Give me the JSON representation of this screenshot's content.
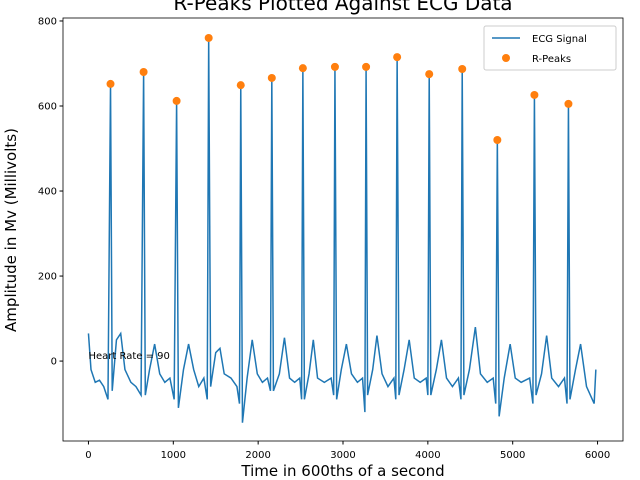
{
  "chart_data": {
    "type": "line",
    "title": "R-Peaks Plotted Against ECG Data",
    "xlabel": "Time in 600ths of a second",
    "ylabel": "Amplitude in Mv (Millivolts)",
    "annotation": {
      "text": "Heart Rate = 90",
      "x": 0,
      "y": 0
    },
    "xlim": [
      -300,
      6300
    ],
    "ylim": [
      -188,
      807
    ],
    "xticks": [
      0,
      1000,
      2000,
      3000,
      4000,
      5000,
      6000
    ],
    "yticks": [
      0,
      200,
      400,
      600,
      800
    ],
    "grid": false,
    "legend": "upper right",
    "series": [
      {
        "name": "ECG Signal",
        "color": "#1f77b4",
        "style": "line",
        "x": [
          0,
          30,
          80,
          130,
          180,
          230,
          260,
          280,
          330,
          380,
          430,
          500,
          560,
          620,
          650,
          670,
          720,
          780,
          840,
          900,
          960,
          1010,
          1039,
          1060,
          1120,
          1180,
          1240,
          1300,
          1360,
          1400,
          1417,
          1440,
          1500,
          1550,
          1600,
          1680,
          1750,
          1780,
          1795,
          1815,
          1870,
          1930,
          1990,
          2050,
          2110,
          2145,
          2161,
          2180,
          2250,
          2310,
          2370,
          2430,
          2490,
          2512,
          2527,
          2545,
          2600,
          2650,
          2700,
          2780,
          2860,
          2890,
          2905,
          2925,
          2980,
          3040,
          3100,
          3170,
          3230,
          3258,
          3272,
          3290,
          3350,
          3400,
          3460,
          3530,
          3600,
          3622,
          3638,
          3660,
          3720,
          3780,
          3840,
          3910,
          3980,
          4000,
          4016,
          4035,
          4100,
          4160,
          4220,
          4290,
          4360,
          4390,
          4405,
          4425,
          4490,
          4560,
          4620,
          4700,
          4770,
          4800,
          4819,
          4840,
          4900,
          4970,
          5030,
          5100,
          5200,
          5238,
          5256,
          5275,
          5340,
          5400,
          5460,
          5540,
          5610,
          5640,
          5657,
          5675,
          5740,
          5800,
          5870,
          5960,
          5980
        ],
        "values": [
          65,
          -20,
          -50,
          -45,
          -60,
          -90,
          652,
          -70,
          50,
          65,
          -20,
          -50,
          -60,
          -80,
          680,
          -80,
          -20,
          40,
          -30,
          -50,
          -40,
          -90,
          612,
          -110,
          -20,
          40,
          -20,
          -60,
          -40,
          -90,
          760,
          -60,
          20,
          30,
          -30,
          -40,
          -60,
          -100,
          649,
          -145,
          -40,
          50,
          -30,
          -50,
          -40,
          -70,
          666,
          -70,
          -30,
          55,
          -40,
          -50,
          -40,
          -90,
          689,
          -90,
          -30,
          50,
          -40,
          -50,
          -40,
          -80,
          692,
          -90,
          -20,
          40,
          -30,
          -50,
          -40,
          -120,
          692,
          -80,
          -20,
          60,
          -30,
          -60,
          -40,
          -90,
          715,
          -80,
          -20,
          50,
          -40,
          -50,
          -40,
          -80,
          675,
          -80,
          -20,
          50,
          -40,
          -60,
          -40,
          -90,
          687,
          -80,
          -20,
          80,
          -30,
          -50,
          -40,
          -100,
          520,
          -130,
          -40,
          40,
          -40,
          -50,
          -40,
          -100,
          626,
          -80,
          -30,
          60,
          -40,
          -60,
          -40,
          -100,
          605,
          -90,
          -20,
          40,
          -60,
          -100,
          -20
        ]
      },
      {
        "name": "R-Peaks",
        "color": "#ff7f0e",
        "style": "scatter",
        "x": [
          260,
          650,
          1039,
          1417,
          1795,
          2161,
          2527,
          2905,
          3272,
          3638,
          4016,
          4405,
          4819,
          5256,
          5657
        ],
        "values": [
          652,
          680,
          612,
          760,
          649,
          666,
          689,
          692,
          692,
          715,
          675,
          687,
          520,
          626,
          605
        ]
      }
    ]
  }
}
